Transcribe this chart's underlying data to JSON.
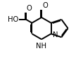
{
  "background": "#ffffff",
  "bond_color": "#000000",
  "bond_lw": 1.4,
  "figsize": [
    1.18,
    0.83
  ],
  "dpi": 100,
  "xlim": [
    0.0,
    1.0
  ],
  "ylim": [
    0.0,
    1.0
  ]
}
